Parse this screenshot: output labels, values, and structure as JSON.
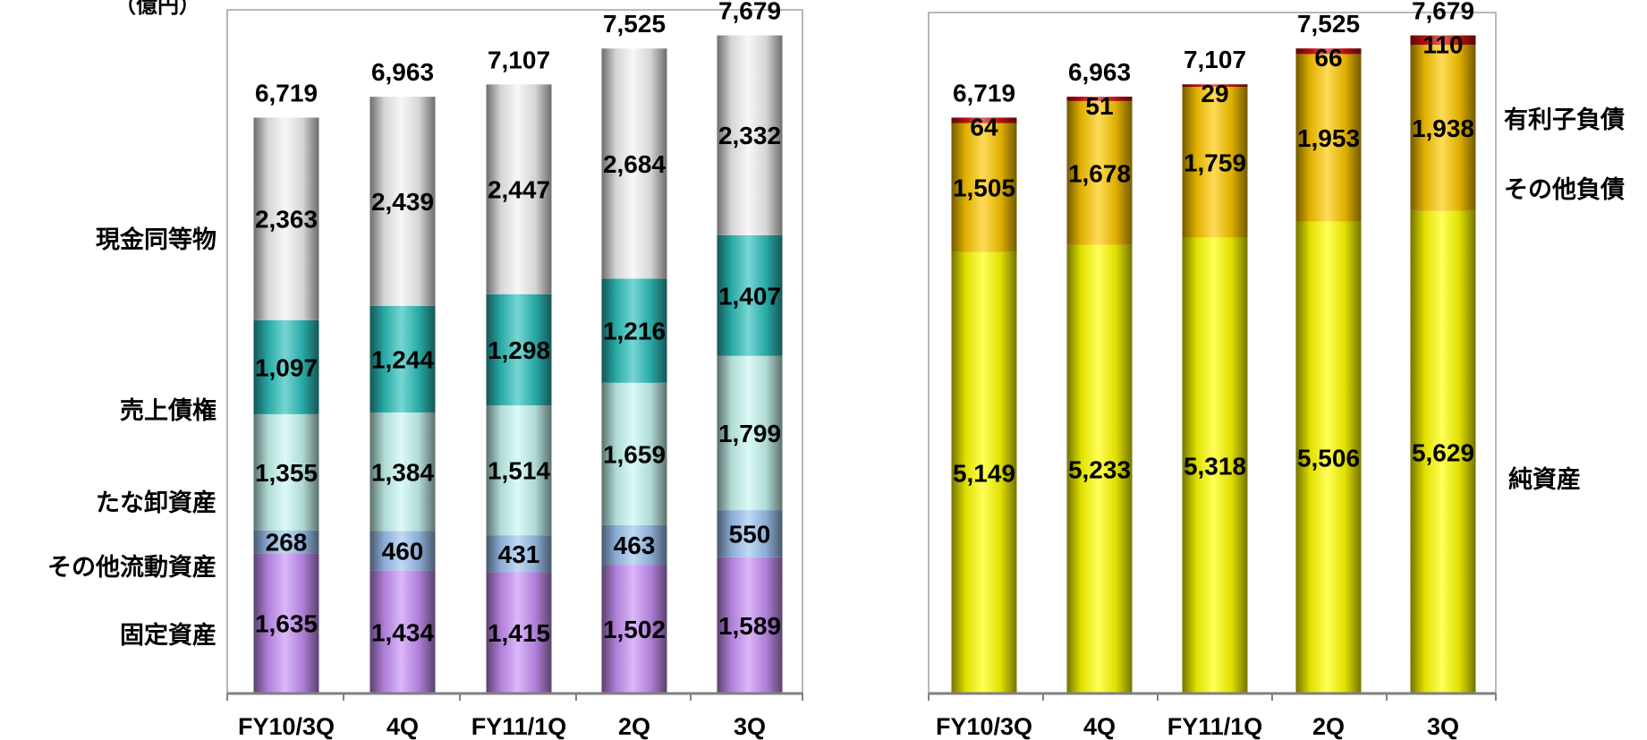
{
  "unit_label": "（億円）",
  "categories": [
    "FY10/3Q",
    "4Q",
    "FY11/1Q",
    "2Q",
    "3Q"
  ],
  "chart_data": [
    {
      "type": "bar",
      "stacked": true,
      "categories": [
        "FY10/3Q",
        "4Q",
        "FY11/1Q",
        "2Q",
        "3Q"
      ],
      "totals": [
        "6,719",
        "6,963",
        "7,107",
        "7,525",
        "7,679"
      ],
      "series": [
        {
          "name": "固定資産",
          "values": [
            1635,
            1434,
            1415,
            1502,
            1589
          ],
          "labels": [
            "1,635",
            "1,434",
            "1,415",
            "1,502",
            "1,589"
          ],
          "color": "#c890f5"
        },
        {
          "name": "その他流動資産",
          "values": [
            268,
            460,
            431,
            463,
            550
          ],
          "labels": [
            "268",
            "460",
            "431",
            "463",
            "550"
          ],
          "color": "#9ec4f0"
        },
        {
          "name": "たな卸資産",
          "values": [
            1355,
            1384,
            1514,
            1659,
            1799
          ],
          "labels": [
            "1,355",
            "1,384",
            "1,514",
            "1,659",
            "1,799"
          ],
          "color": "#c8f8f2"
        },
        {
          "name": "売上債権",
          "values": [
            1097,
            1244,
            1298,
            1216,
            1407
          ],
          "labels": [
            "1,097",
            "1,244",
            "1,298",
            "1,216",
            "1,407"
          ],
          "color": "#2ec0bc"
        },
        {
          "name": "現金同等物",
          "values": [
            2363,
            2439,
            2447,
            2684,
            2332
          ],
          "labels": [
            "2,363",
            "2,439",
            "2,447",
            "2,684",
            "2,332"
          ],
          "color": "#f2f2f2"
        }
      ],
      "ylim": [
        0,
        8400
      ],
      "legend": "left"
    },
    {
      "type": "bar",
      "stacked": true,
      "categories": [
        "FY10/3Q",
        "4Q",
        "FY11/1Q",
        "2Q",
        "3Q"
      ],
      "totals": [
        "6,719",
        "6,963",
        "7,107",
        "7,525",
        "7,679"
      ],
      "series": [
        {
          "name": "純資産",
          "values": [
            5149,
            5233,
            5318,
            5506,
            5629
          ],
          "labels": [
            "5,149",
            "5,233",
            "5,318",
            "5,506",
            "5,629"
          ],
          "color": "#ffff00"
        },
        {
          "name": "その他負債",
          "values": [
            1505,
            1678,
            1759,
            1953,
            1938
          ],
          "labels": [
            "1,505",
            "1,678",
            "1,759",
            "1,953",
            "1,938"
          ],
          "color": "#ffc800"
        },
        {
          "name": "有利子負債",
          "values": [
            64,
            51,
            29,
            66,
            110
          ],
          "labels": [
            "64",
            "51",
            "29",
            "66",
            "110"
          ],
          "color": "#cc1010"
        }
      ],
      "ylim": [
        0,
        8400
      ],
      "legend": "right"
    }
  ],
  "colors": {
    "frame": "#a0a0a0",
    "axis": "#808080"
  }
}
